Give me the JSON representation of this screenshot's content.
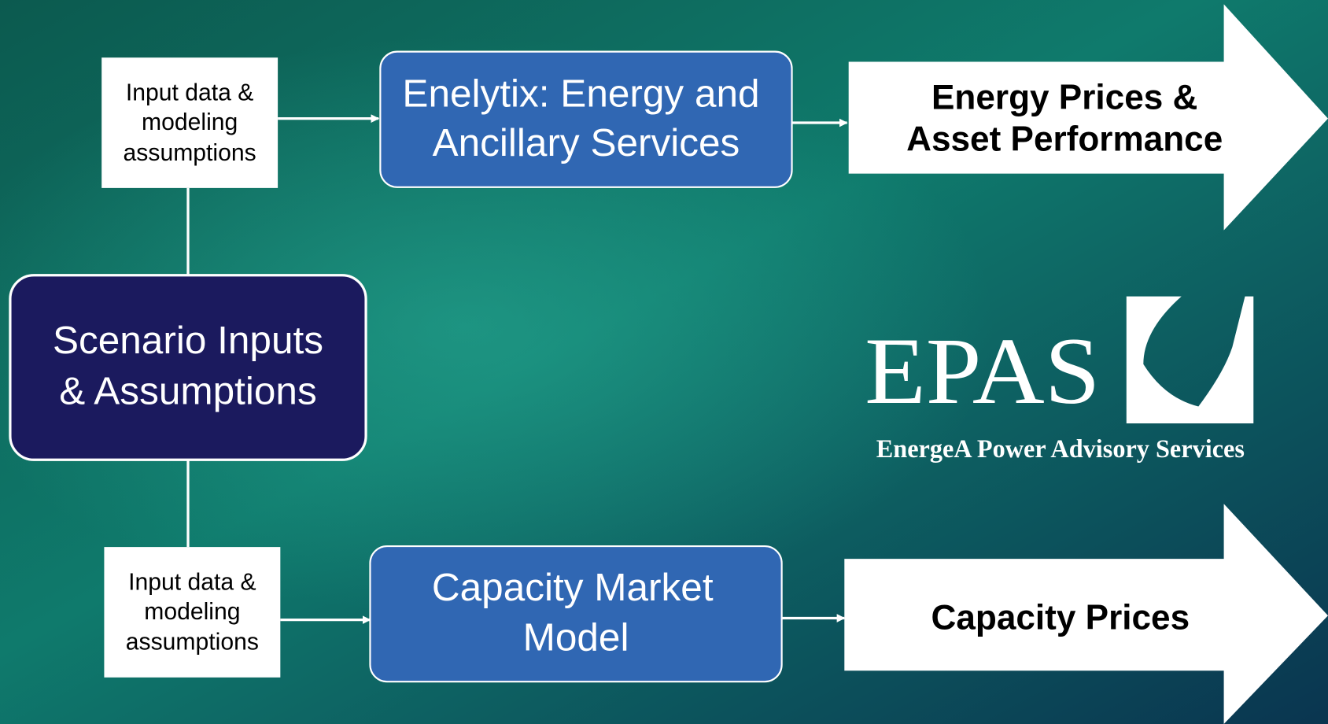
{
  "scenario": {
    "lines": [
      "Scenario Inputs",
      "& Assumptions"
    ]
  },
  "top_input": {
    "lines": [
      "Input data &",
      "modeling",
      "assumptions"
    ]
  },
  "bottom_input": {
    "lines": [
      "Input data &",
      "modeling",
      "assumptions"
    ]
  },
  "energy_model": {
    "lines": [
      "Enelytix: Energy and",
      "Ancillary Services"
    ]
  },
  "capacity_model": {
    "lines": [
      "Capacity Market",
      "Model"
    ]
  },
  "energy_output": {
    "lines": [
      "Energy Prices &",
      "Asset Performance"
    ]
  },
  "capacity_output": {
    "lines": [
      "Capacity Prices"
    ]
  },
  "logo": {
    "name": "EPAS",
    "tagline": "EnergeA Power Advisory Services"
  }
}
